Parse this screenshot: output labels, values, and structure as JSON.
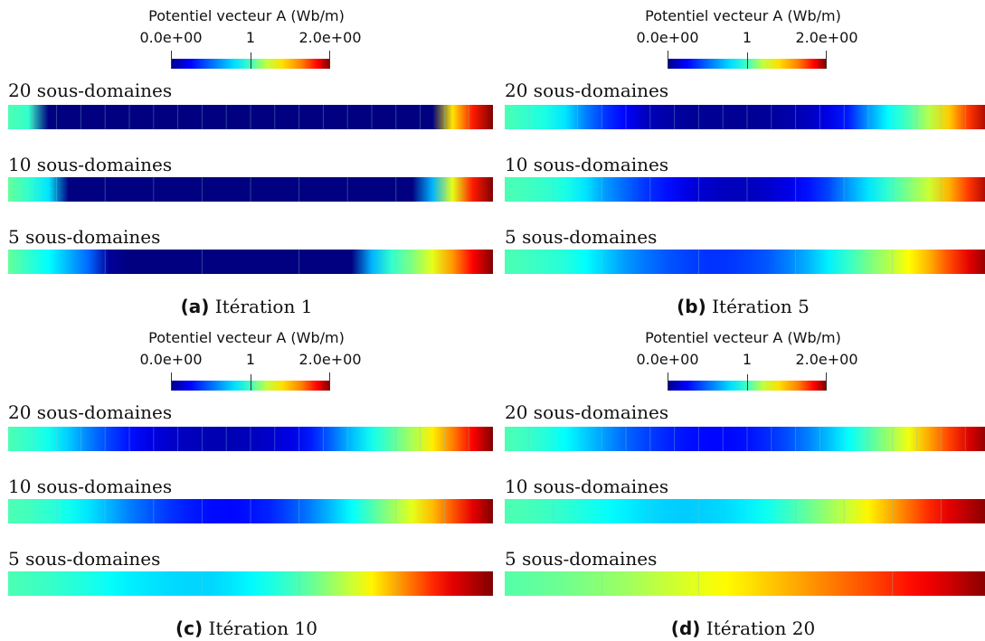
{
  "colorbar": {
    "title": "Potentiel vecteur A (Wb/m)",
    "tick_min": "0.0e+00",
    "tick_mid": "1",
    "tick_max": "2.0e+00",
    "colormap": "jet"
  },
  "labels": {
    "row20": "20 sous-domaines",
    "row10": "10 sous-domaines",
    "row5": "5 sous-domaines"
  },
  "panels": [
    {
      "caption_letter": "(a)",
      "caption_text": "Itération 1",
      "rows": [
        {
          "stops": [
            0.9,
            0.85,
            0,
            0,
            0,
            0,
            0,
            0,
            0,
            0,
            0,
            0,
            0,
            0,
            0,
            0,
            0,
            0,
            0,
            0,
            0,
            0,
            1.3,
            1.7,
            2.0
          ]
        },
        {
          "stops": [
            0.95,
            0.85,
            0.7,
            0,
            0,
            0,
            0,
            0,
            0,
            0,
            0,
            0,
            0,
            0,
            0,
            0,
            0,
            0,
            0,
            0,
            0,
            0.6,
            1.2,
            1.7,
            2.0
          ]
        },
        {
          "stops": [
            0.95,
            0.85,
            0.75,
            0.6,
            0.45,
            0.05,
            0,
            0,
            0,
            0,
            0,
            0,
            0,
            0,
            0,
            0,
            0,
            0,
            0.6,
            0.85,
            1.0,
            1.2,
            1.45,
            1.75,
            2.0
          ]
        }
      ]
    },
    {
      "caption_letter": "(b)",
      "caption_text": "Itération 5",
      "rows": [
        {
          "stops": [
            0.9,
            0.85,
            0.8,
            0.7,
            0.5,
            0.35,
            0.25,
            0.12,
            0.08,
            0.05,
            0.04,
            0.04,
            0.04,
            0.05,
            0.08,
            0.12,
            0.2,
            0.3,
            0.55,
            0.75,
            0.9,
            1.1,
            1.35,
            1.65,
            1.95
          ]
        },
        {
          "stops": [
            0.9,
            0.88,
            0.85,
            0.8,
            0.7,
            0.55,
            0.45,
            0.35,
            0.28,
            0.2,
            0.15,
            0.12,
            0.12,
            0.15,
            0.2,
            0.28,
            0.38,
            0.55,
            0.7,
            0.85,
            1.0,
            1.15,
            1.4,
            1.65,
            1.95
          ]
        },
        {
          "stops": [
            0.9,
            0.88,
            0.85,
            0.82,
            0.75,
            0.65,
            0.55,
            0.48,
            0.42,
            0.38,
            0.35,
            0.35,
            0.38,
            0.42,
            0.5,
            0.6,
            0.72,
            0.85,
            0.98,
            1.1,
            1.25,
            1.4,
            1.6,
            1.8,
            2.0
          ]
        }
      ]
    },
    {
      "caption_letter": "(c)",
      "caption_text": "Itération 10",
      "rows": [
        {
          "stops": [
            0.9,
            0.85,
            0.78,
            0.65,
            0.5,
            0.38,
            0.28,
            0.2,
            0.15,
            0.12,
            0.1,
            0.1,
            0.12,
            0.15,
            0.2,
            0.3,
            0.45,
            0.62,
            0.78,
            0.92,
            1.08,
            1.28,
            1.5,
            1.75,
            2.0
          ]
        },
        {
          "stops": [
            0.9,
            0.88,
            0.84,
            0.78,
            0.7,
            0.6,
            0.5,
            0.42,
            0.35,
            0.3,
            0.27,
            0.26,
            0.28,
            0.32,
            0.4,
            0.5,
            0.62,
            0.75,
            0.9,
            1.05,
            1.2,
            1.38,
            1.58,
            1.8,
            2.0
          ]
        },
        {
          "stops": [
            0.9,
            0.88,
            0.86,
            0.83,
            0.8,
            0.76,
            0.72,
            0.7,
            0.68,
            0.67,
            0.67,
            0.7,
            0.74,
            0.8,
            0.87,
            0.95,
            1.05,
            1.15,
            1.27,
            1.4,
            1.53,
            1.67,
            1.8,
            1.9,
            2.0
          ]
        }
      ]
    },
    {
      "caption_letter": "(d)",
      "caption_text": "Itération 20",
      "rows": [
        {
          "stops": [
            0.9,
            0.87,
            0.82,
            0.75,
            0.65,
            0.55,
            0.45,
            0.38,
            0.32,
            0.28,
            0.26,
            0.26,
            0.28,
            0.33,
            0.4,
            0.5,
            0.62,
            0.75,
            0.9,
            1.05,
            1.22,
            1.42,
            1.62,
            1.82,
            2.0
          ]
        },
        {
          "stops": [
            0.9,
            0.89,
            0.87,
            0.84,
            0.8,
            0.76,
            0.72,
            0.68,
            0.66,
            0.65,
            0.66,
            0.68,
            0.72,
            0.78,
            0.86,
            0.95,
            1.05,
            1.15,
            1.27,
            1.4,
            1.53,
            1.67,
            1.8,
            1.9,
            2.0
          ]
        },
        {
          "stops": [
            0.92,
            0.93,
            0.95,
            0.97,
            1.0,
            1.03,
            1.06,
            1.1,
            1.14,
            1.18,
            1.22,
            1.26,
            1.3,
            1.35,
            1.4,
            1.45,
            1.5,
            1.55,
            1.6,
            1.66,
            1.72,
            1.78,
            1.84,
            1.92,
            2.0
          ]
        }
      ]
    }
  ]
}
